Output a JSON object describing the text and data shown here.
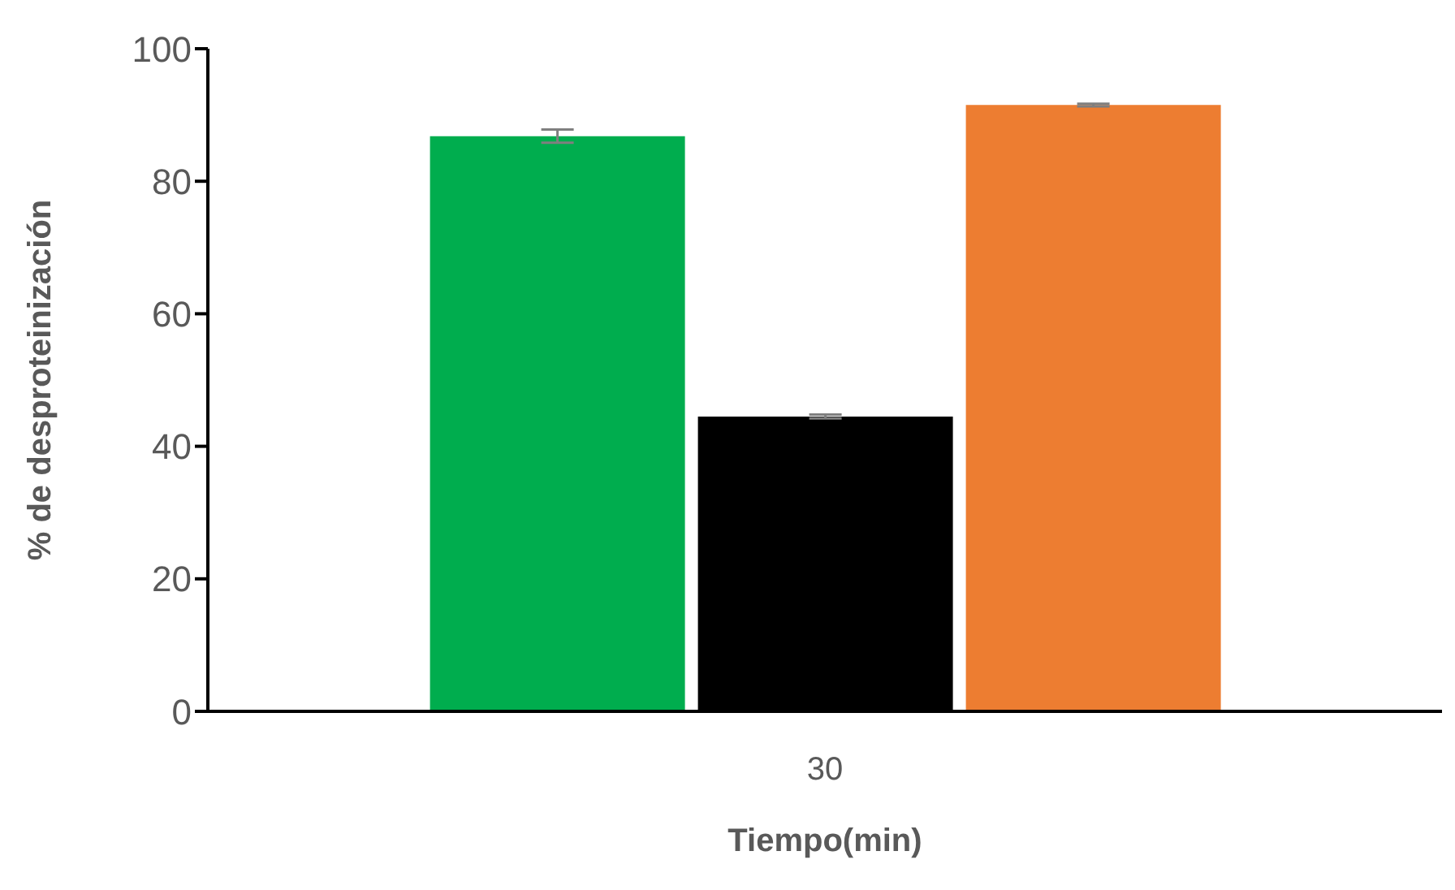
{
  "chart_data": {
    "type": "bar",
    "xlabel": "Tiempo(min)",
    "ylabel": "% de desproteinización",
    "categories": [
      "30"
    ],
    "series": [
      {
        "color": "#00ad4e",
        "values": [
          86.8
        ],
        "errors": [
          1
        ]
      },
      {
        "color": "#000000",
        "values": [
          44.5
        ],
        "errors": [
          0.3
        ]
      },
      {
        "color": "#ed7d31",
        "values": [
          91.5
        ],
        "errors": [
          0.2
        ]
      }
    ],
    "ylim": [
      0,
      100
    ],
    "yticks": [
      0,
      20,
      40,
      60,
      80,
      100
    ],
    "grid": false,
    "legend": false
  }
}
